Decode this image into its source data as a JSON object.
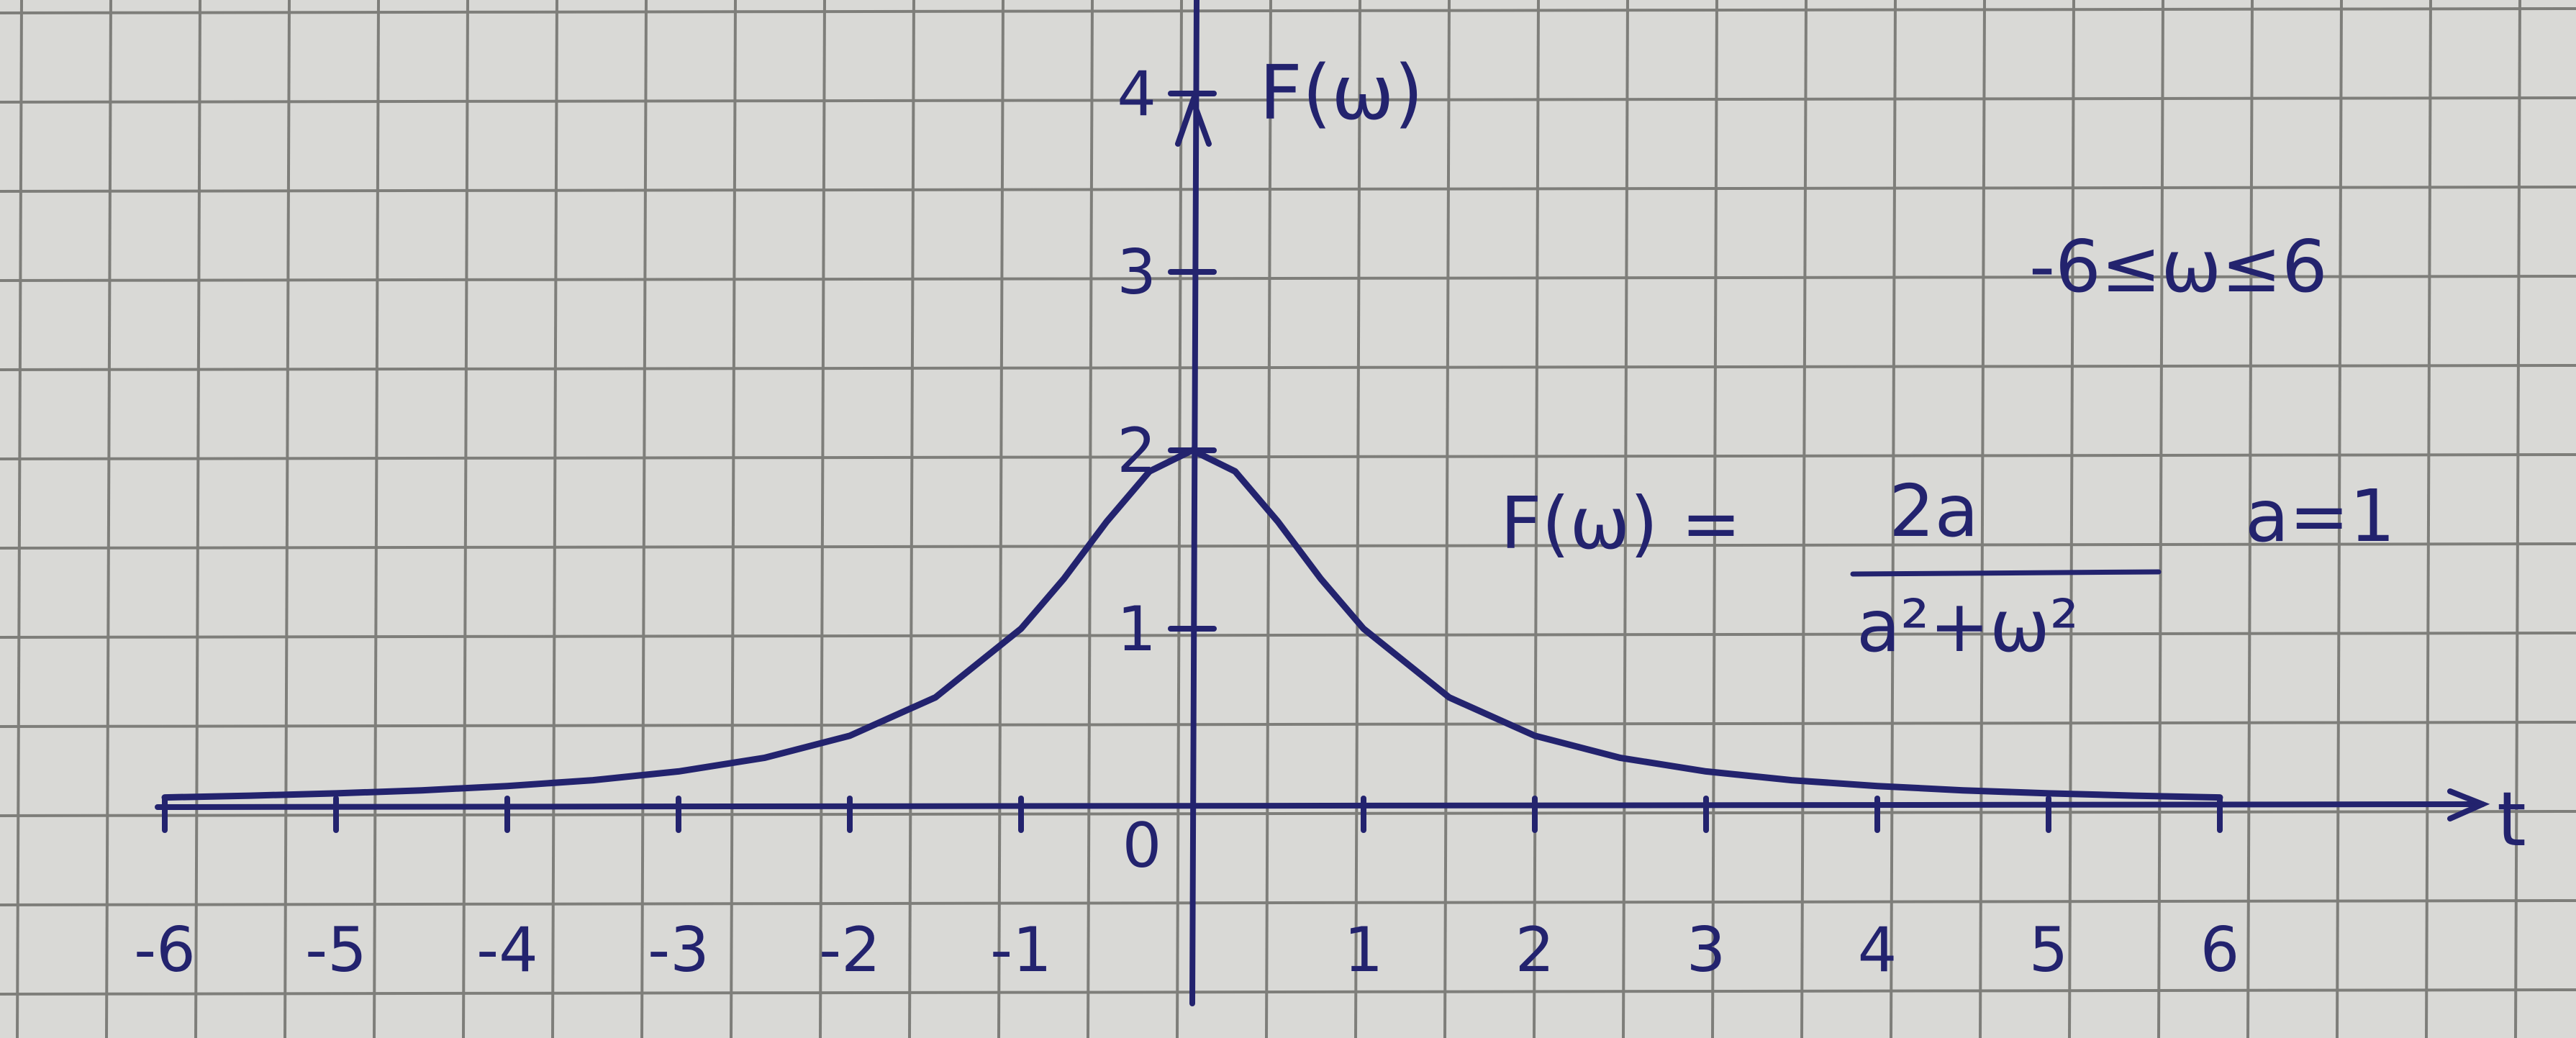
{
  "chart_data": {
    "type": "line",
    "title": "",
    "xlabel": "t",
    "ylabel": "F(ω)",
    "xlim": [
      -6,
      6
    ],
    "ylim": [
      0,
      4
    ],
    "grid": true,
    "x_ticks": [
      "-6",
      "-5",
      "-4",
      "-3",
      "-2",
      "-1",
      "0",
      "1",
      "2",
      "3",
      "4",
      "5",
      "6"
    ],
    "y_ticks": [
      "1",
      "2",
      "3",
      "4"
    ],
    "series": [
      {
        "x": [
          -6,
          -5.5,
          -5,
          -4.5,
          -4,
          -3.5,
          -3,
          -2.5,
          -2,
          -1.5,
          -1,
          -0.75,
          -0.5,
          -0.25,
          0,
          0.25,
          0.5,
          0.75,
          1,
          1.5,
          2,
          2.5,
          3,
          3.5,
          4,
          4.5,
          5,
          5.5,
          6
        ],
        "y": [
          0.054,
          0.064,
          0.077,
          0.094,
          0.118,
          0.151,
          0.2,
          0.276,
          0.4,
          0.615,
          1.0,
          1.28,
          1.6,
          1.882,
          2.0,
          1.882,
          1.6,
          1.28,
          1.0,
          0.615,
          0.4,
          0.276,
          0.2,
          0.151,
          0.118,
          0.094,
          0.077,
          0.064,
          0.054
        ]
      }
    ],
    "annotations": {
      "domain": "-6≤ω≤6",
      "formula_lhs": "F(ω) =",
      "formula_numerator": "2a",
      "formula_denominator": "a²+ω²",
      "parameter": "a=1"
    }
  },
  "colors": {
    "paper": "#d9d9d6",
    "grid": "#7e7e7a",
    "ink": "#23236e"
  }
}
